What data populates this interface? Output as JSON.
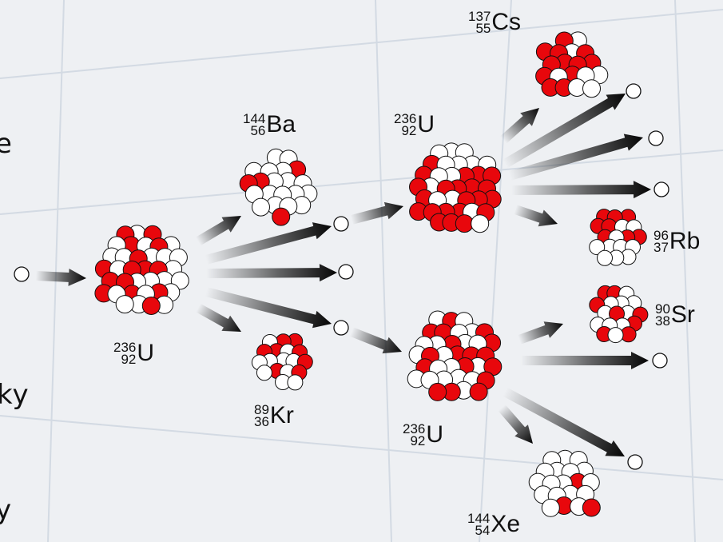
{
  "colors": {
    "proton": "#e8070c",
    "neutron": "#ffffff",
    "outline": "#111111",
    "arrow_dark": "#050505",
    "background": "#eef0f3",
    "grid_line": "#d3dae3"
  },
  "edge_fragments": {
    "right_e": "e",
    "right_ky": "ky",
    "right_y": "y"
  },
  "nodes": {
    "neutron_in": {
      "kind": "neutron"
    },
    "uranium_initial": {
      "kind": "nucleus",
      "label": {
        "mass": "236",
        "atomic": "92",
        "symbol": "U"
      }
    },
    "barium": {
      "kind": "nucleus",
      "label": {
        "mass": "144",
        "atomic": "56",
        "symbol": "Ba"
      }
    },
    "krypton": {
      "kind": "nucleus",
      "label": {
        "mass": "89",
        "atomic": "36",
        "symbol": "Kr"
      }
    },
    "neutron_a": {
      "kind": "neutron"
    },
    "neutron_b": {
      "kind": "neutron"
    },
    "neutron_c": {
      "kind": "neutron"
    },
    "uranium_upper": {
      "kind": "nucleus",
      "label": {
        "mass": "236",
        "atomic": "92",
        "symbol": "U"
      }
    },
    "uranium_lower": {
      "kind": "nucleus",
      "label": {
        "mass": "236",
        "atomic": "92",
        "symbol": "U"
      }
    },
    "cesium": {
      "kind": "nucleus",
      "label": {
        "mass": "137",
        "atomic": "55",
        "symbol": "Cs"
      }
    },
    "rubidium": {
      "kind": "nucleus",
      "label": {
        "mass": "96",
        "atomic": "37",
        "symbol": "Rb"
      }
    },
    "strontium": {
      "kind": "nucleus",
      "label": {
        "mass": "90",
        "atomic": "38",
        "symbol": "Sr"
      }
    },
    "xenon": {
      "kind": "nucleus",
      "label": {
        "mass": "144",
        "atomic": "54",
        "symbol": "Xe"
      }
    },
    "neutron_u1": {
      "kind": "neutron"
    },
    "neutron_u2": {
      "kind": "neutron"
    },
    "neutron_u3": {
      "kind": "neutron"
    },
    "neutron_l1": {
      "kind": "neutron"
    },
    "neutron_l2": {
      "kind": "neutron"
    }
  },
  "edges": [
    {
      "from": "neutron_in",
      "to": "uranium_initial"
    },
    {
      "from": "uranium_initial",
      "to": "barium"
    },
    {
      "from": "uranium_initial",
      "to": "neutron_a"
    },
    {
      "from": "uranium_initial",
      "to": "neutron_b"
    },
    {
      "from": "uranium_initial",
      "to": "neutron_c"
    },
    {
      "from": "uranium_initial",
      "to": "krypton"
    },
    {
      "from": "neutron_a",
      "to": "uranium_upper"
    },
    {
      "from": "neutron_c",
      "to": "uranium_lower"
    },
    {
      "from": "uranium_upper",
      "to": "cesium"
    },
    {
      "from": "uranium_upper",
      "to": "neutron_u1"
    },
    {
      "from": "uranium_upper",
      "to": "neutron_u2"
    },
    {
      "from": "uranium_upper",
      "to": "neutron_u3"
    },
    {
      "from": "uranium_upper",
      "to": "rubidium"
    },
    {
      "from": "uranium_lower",
      "to": "strontium"
    },
    {
      "from": "uranium_lower",
      "to": "neutron_l1"
    },
    {
      "from": "uranium_lower",
      "to": "xenon"
    },
    {
      "from": "uranium_lower",
      "to": "neutron_l2"
    }
  ]
}
